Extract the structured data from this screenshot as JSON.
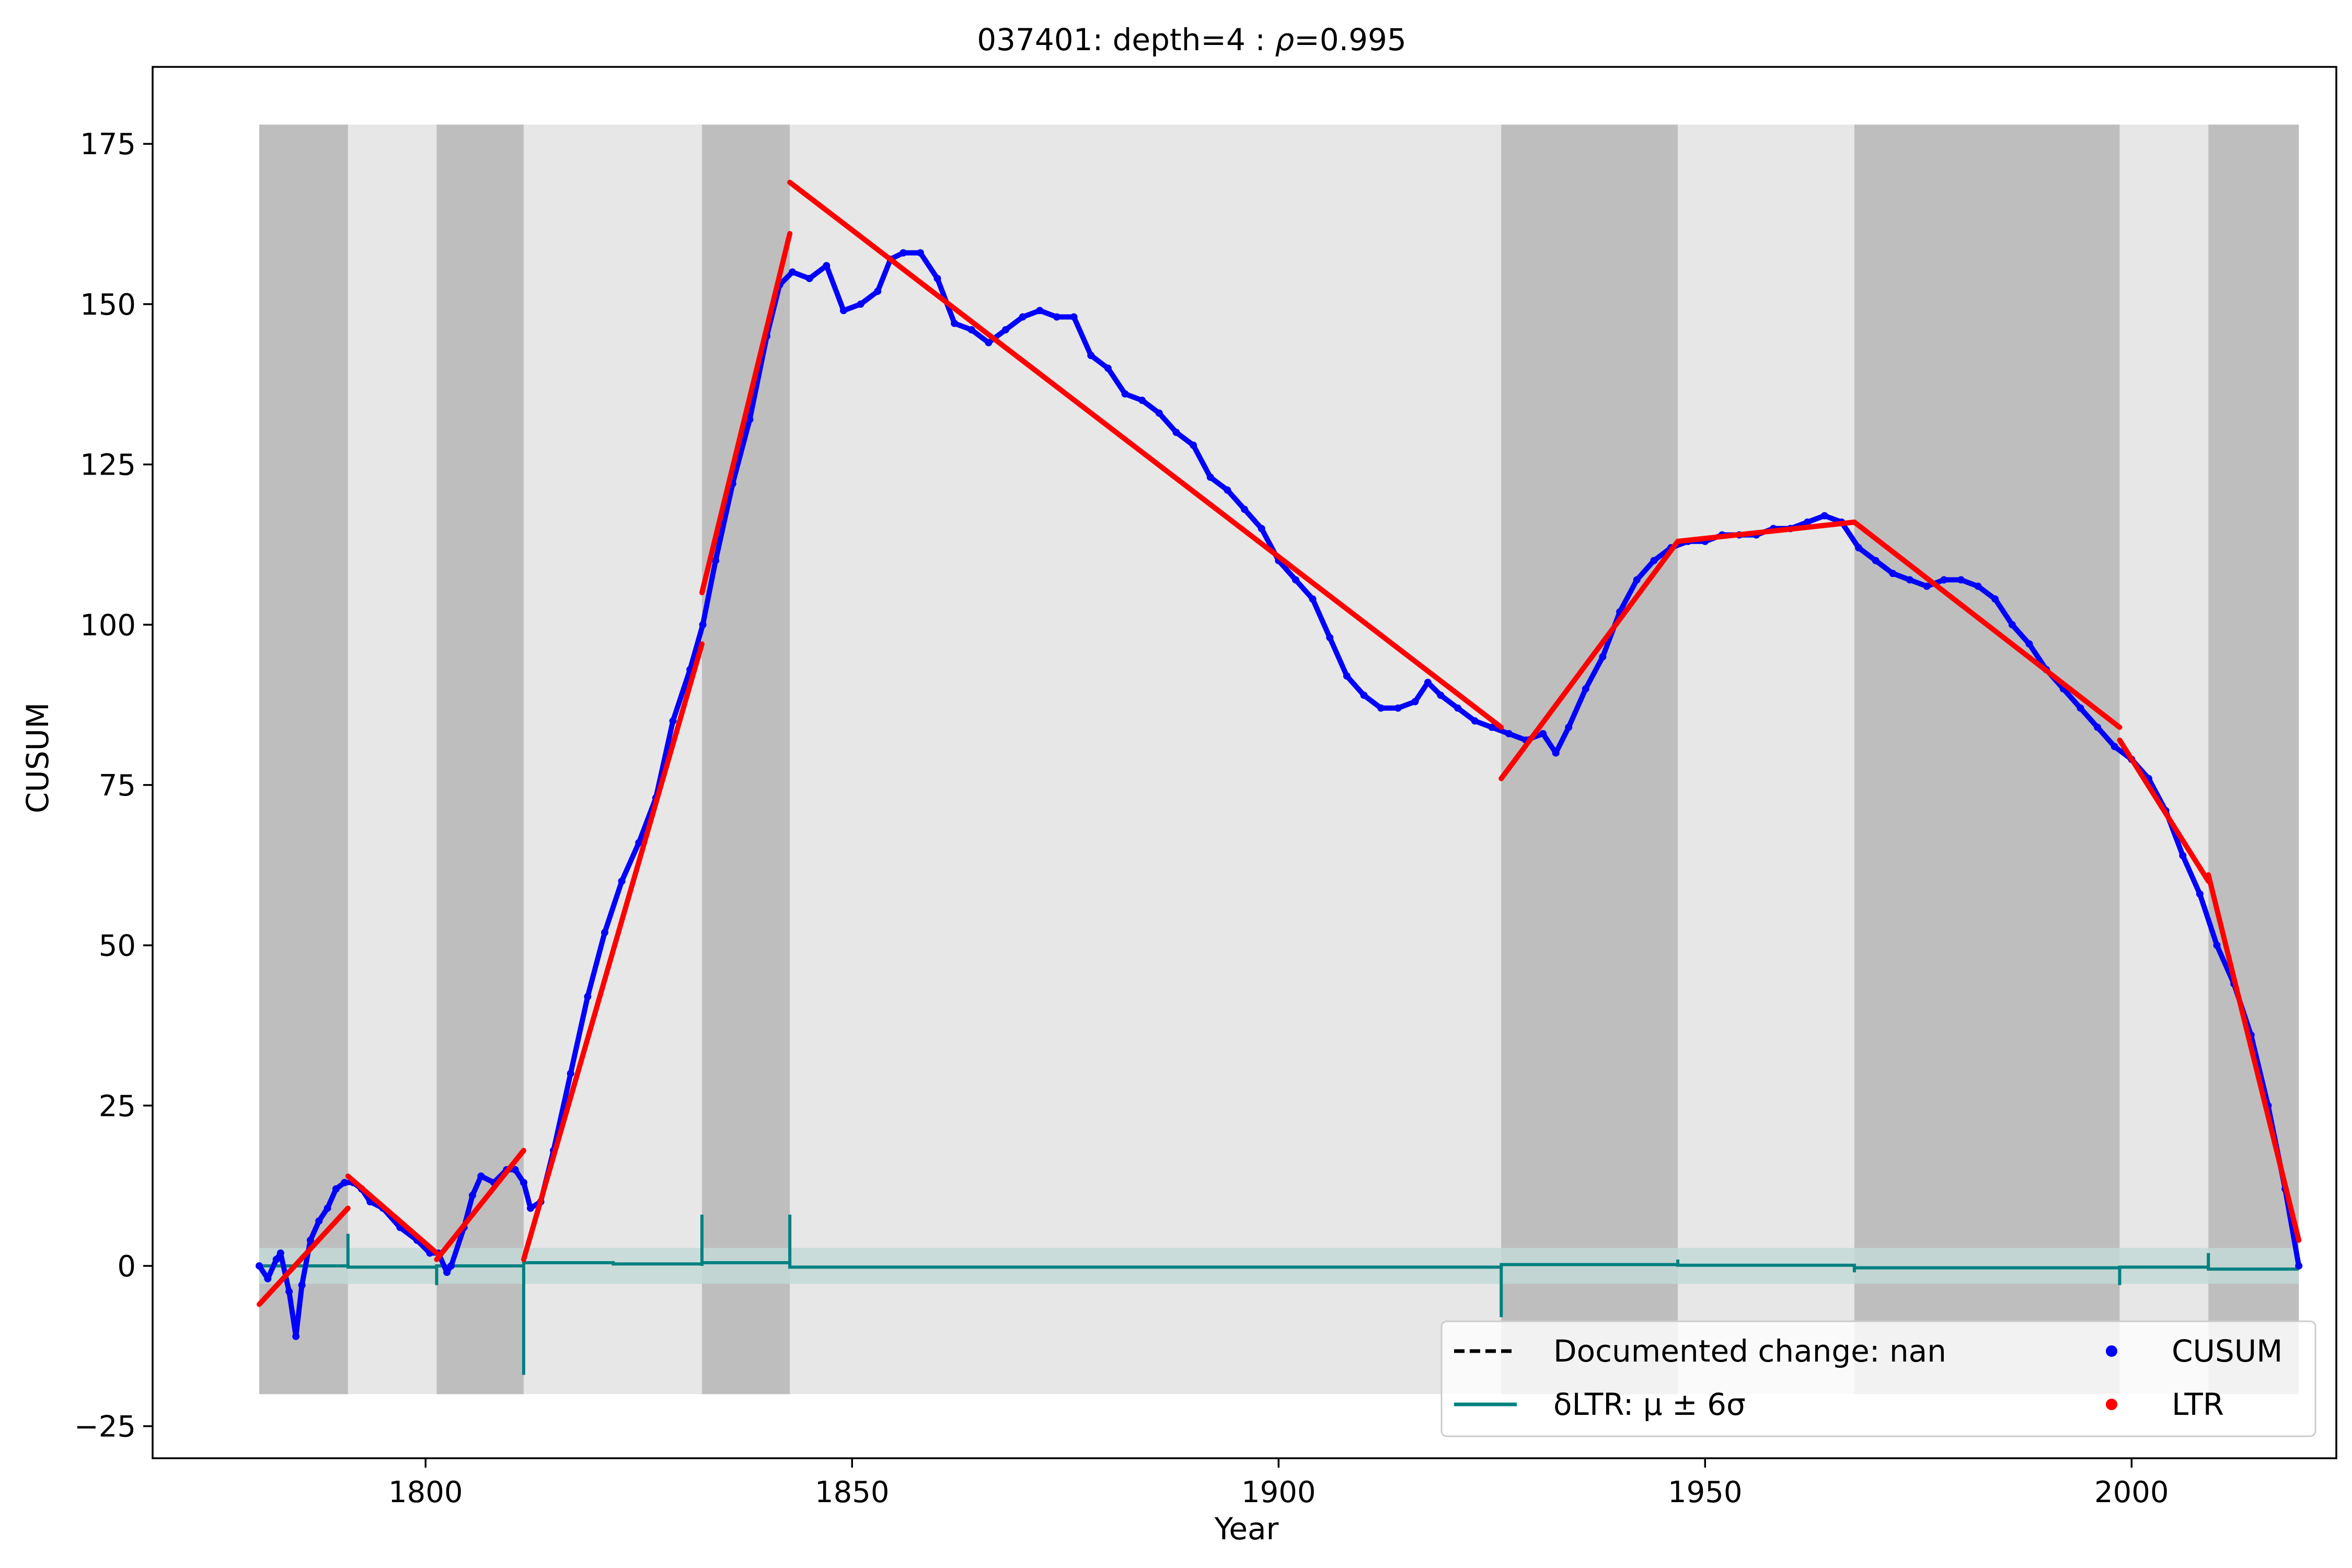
{
  "chart_data": {
    "type": "line",
    "title": "037401: depth=4 : ρ=0.995",
    "title_parts": {
      "prefix": "037401: depth=4 : ",
      "symbol": "ρ",
      "suffix": "=0.995"
    },
    "xlabel": "Year",
    "ylabel": "CUSUM",
    "xlim": [
      1768,
      2024
    ],
    "ylim": [
      -30,
      187
    ],
    "xticks": [
      1800,
      1850,
      1900,
      1950,
      2000
    ],
    "yticks": [
      -25,
      0,
      25,
      50,
      75,
      100,
      125,
      150,
      175
    ],
    "grid": false,
    "legend_placement": "lower-right",
    "background_band": {
      "x": [
        1780.5,
        2019.6
      ],
      "y": [
        -20,
        178
      ],
      "color": "#e7e7e7"
    },
    "dark_bands": [
      {
        "x0": 1780.5,
        "x1": 1790.9
      },
      {
        "x0": 1801.3,
        "x1": 1811.5
      },
      {
        "x0": 1832.4,
        "x1": 1842.7
      },
      {
        "x0": 1926.1,
        "x1": 1946.8
      },
      {
        "x0": 1967.5,
        "x1": 1998.6
      },
      {
        "x0": 2009.0,
        "x1": 2019.6
      }
    ],
    "dark_band_color": "#bebebe",
    "sigma_band": {
      "y0": -2.8,
      "y1": 2.8,
      "color": "#c3d9d6"
    },
    "series": [
      {
        "name": "CUSUM",
        "color": "#0000ff",
        "marker": "dot",
        "points": [
          [
            1780.5,
            0
          ],
          [
            1781.5,
            -2
          ],
          [
            1782.5,
            1
          ],
          [
            1783,
            2
          ],
          [
            1784,
            -4
          ],
          [
            1784.8,
            -11
          ],
          [
            1785.5,
            -3
          ],
          [
            1786.5,
            4
          ],
          [
            1787.5,
            7
          ],
          [
            1788.5,
            9
          ],
          [
            1789.5,
            12
          ],
          [
            1790.5,
            13
          ],
          [
            1791.5,
            13
          ],
          [
            1792.5,
            12
          ],
          [
            1793.5,
            10
          ],
          [
            1795,
            9
          ],
          [
            1797,
            6
          ],
          [
            1799,
            4
          ],
          [
            1800.5,
            2
          ],
          [
            1801.5,
            2
          ],
          [
            1802.5,
            -1
          ],
          [
            1803,
            0
          ],
          [
            1804.5,
            6
          ],
          [
            1805.5,
            11
          ],
          [
            1806.5,
            14
          ],
          [
            1808,
            13
          ],
          [
            1809.5,
            15
          ],
          [
            1810.5,
            15
          ],
          [
            1811.5,
            13
          ],
          [
            1812.3,
            9
          ],
          [
            1813.5,
            10
          ],
          [
            1815,
            18
          ],
          [
            1817,
            30
          ],
          [
            1819,
            42
          ],
          [
            1821,
            52
          ],
          [
            1823,
            60
          ],
          [
            1825,
            66
          ],
          [
            1827,
            73
          ],
          [
            1829,
            85
          ],
          [
            1831,
            93
          ],
          [
            1832.5,
            100
          ],
          [
            1834,
            110
          ],
          [
            1836,
            122
          ],
          [
            1838,
            132
          ],
          [
            1840,
            145
          ],
          [
            1841.5,
            153
          ],
          [
            1843,
            155
          ],
          [
            1845,
            154
          ],
          [
            1847,
            156
          ],
          [
            1849,
            149
          ],
          [
            1851,
            150
          ],
          [
            1853,
            152
          ],
          [
            1854.5,
            157
          ],
          [
            1856,
            158
          ],
          [
            1858,
            158
          ],
          [
            1860,
            154
          ],
          [
            1862,
            147
          ],
          [
            1864,
            146
          ],
          [
            1866,
            144
          ],
          [
            1868,
            146
          ],
          [
            1870,
            148
          ],
          [
            1872,
            149
          ],
          [
            1874,
            148
          ],
          [
            1876,
            148
          ],
          [
            1878,
            142
          ],
          [
            1880,
            140
          ],
          [
            1882,
            136
          ],
          [
            1884,
            135
          ],
          [
            1886,
            133
          ],
          [
            1888,
            130
          ],
          [
            1890,
            128
          ],
          [
            1892,
            123
          ],
          [
            1894,
            121
          ],
          [
            1896,
            118
          ],
          [
            1898,
            115
          ],
          [
            1900,
            110
          ],
          [
            1902,
            107
          ],
          [
            1904,
            104
          ],
          [
            1906,
            98
          ],
          [
            1908,
            92
          ],
          [
            1910,
            89
          ],
          [
            1912,
            87
          ],
          [
            1914,
            87
          ],
          [
            1916,
            88
          ],
          [
            1917.5,
            91
          ],
          [
            1919,
            89
          ],
          [
            1921,
            87
          ],
          [
            1923,
            85
          ],
          [
            1925,
            84
          ],
          [
            1927,
            83
          ],
          [
            1929,
            82
          ],
          [
            1931,
            83
          ],
          [
            1932.5,
            80
          ],
          [
            1934,
            84
          ],
          [
            1936,
            90
          ],
          [
            1938,
            95
          ],
          [
            1940,
            102
          ],
          [
            1942,
            107
          ],
          [
            1944,
            110
          ],
          [
            1946,
            112
          ],
          [
            1948,
            113
          ],
          [
            1950,
            113
          ],
          [
            1952,
            114
          ],
          [
            1954,
            114
          ],
          [
            1956,
            114
          ],
          [
            1958,
            115
          ],
          [
            1960,
            115
          ],
          [
            1962,
            116
          ],
          [
            1964,
            117
          ],
          [
            1966,
            116
          ],
          [
            1968,
            112
          ],
          [
            1970,
            110
          ],
          [
            1972,
            108
          ],
          [
            1974,
            107
          ],
          [
            1976,
            106
          ],
          [
            1978,
            107
          ],
          [
            1980,
            107
          ],
          [
            1982,
            106
          ],
          [
            1984,
            104
          ],
          [
            1986,
            100
          ],
          [
            1988,
            97
          ],
          [
            1990,
            93
          ],
          [
            1992,
            90
          ],
          [
            1994,
            87
          ],
          [
            1996,
            84
          ],
          [
            1998,
            81
          ],
          [
            2000,
            79
          ],
          [
            2002,
            76
          ],
          [
            2004,
            71
          ],
          [
            2006,
            64
          ],
          [
            2008,
            58
          ],
          [
            2010,
            50
          ],
          [
            2012,
            44
          ],
          [
            2014,
            36
          ],
          [
            2016,
            25
          ],
          [
            2018,
            12
          ],
          [
            2019.6,
            0
          ]
        ]
      },
      {
        "name": "LTR",
        "color": "#ff0000",
        "marker": "line",
        "segments": [
          [
            [
              1780.5,
              -6
            ],
            [
              1790.9,
              9
            ]
          ],
          [
            [
              1790.9,
              14
            ],
            [
              1801.3,
              2
            ]
          ],
          [
            [
              1801.3,
              1
            ],
            [
              1811.5,
              18
            ]
          ],
          [
            [
              1811.5,
              1
            ],
            [
              1832.4,
              97
            ]
          ],
          [
            [
              1832.4,
              105
            ],
            [
              1842.7,
              161
            ]
          ],
          [
            [
              1842.7,
              169
            ],
            [
              1926.1,
              84
            ]
          ],
          [
            [
              1926.1,
              76
            ],
            [
              1946.8,
              113
            ]
          ],
          [
            [
              1946.8,
              113
            ],
            [
              1967.5,
              116
            ]
          ],
          [
            [
              1967.5,
              116
            ],
            [
              1998.6,
              84
            ]
          ],
          [
            [
              1998.6,
              82
            ],
            [
              2009.0,
              60
            ]
          ],
          [
            [
              2009.0,
              61
            ],
            [
              2019.6,
              4
            ]
          ]
        ]
      },
      {
        "name": "δLTR: μ ± 6σ",
        "color": "#008080",
        "marker": "step",
        "steps": [
          {
            "x0": 1780.5,
            "x1": 1790.9,
            "y": 0.0
          },
          {
            "x0": 1790.9,
            "x1": 1801.3,
            "y": -0.2
          },
          {
            "x0": 1801.3,
            "x1": 1811.5,
            "y": 0.0
          },
          {
            "x0": 1811.5,
            "x1": 1822.0,
            "y": 0.5
          },
          {
            "x0": 1822.0,
            "x1": 1832.4,
            "y": 0.3
          },
          {
            "x0": 1832.4,
            "x1": 1842.7,
            "y": 0.5
          },
          {
            "x0": 1842.7,
            "x1": 1926.1,
            "y": -0.2
          },
          {
            "x0": 1926.1,
            "x1": 1946.8,
            "y": 0.2
          },
          {
            "x0": 1946.8,
            "x1": 1967.5,
            "y": 0.1
          },
          {
            "x0": 1967.5,
            "x1": 1998.6,
            "y": -0.3
          },
          {
            "x0": 1998.6,
            "x1": 2009.0,
            "y": -0.2
          },
          {
            "x0": 2009.0,
            "x1": 2019.6,
            "y": -0.5
          }
        ],
        "spikes": [
          {
            "x": 1790.9,
            "y": 5
          },
          {
            "x": 1801.3,
            "y": -3
          },
          {
            "x": 1811.5,
            "y": -17
          },
          {
            "x": 1832.4,
            "y": 8
          },
          {
            "x": 1842.7,
            "y": 8
          },
          {
            "x": 1926.1,
            "y": -8
          },
          {
            "x": 1946.8,
            "y": 1
          },
          {
            "x": 1967.5,
            "y": -1
          },
          {
            "x": 1998.6,
            "y": -3
          },
          {
            "x": 2009.0,
            "y": 2
          }
        ]
      }
    ],
    "legend": [
      {
        "key": "doc",
        "label": "Documented change: nan",
        "style": "dashed",
        "color": "#000000"
      },
      {
        "key": "cusum",
        "label": "CUSUM",
        "style": "dot",
        "color": "#0000ff"
      },
      {
        "key": "dltr",
        "label": "δLTR: μ ± 6σ",
        "style": "line",
        "color": "#008080"
      },
      {
        "key": "ltr",
        "label": "LTR",
        "style": "dot",
        "color": "#ff0000"
      }
    ]
  }
}
